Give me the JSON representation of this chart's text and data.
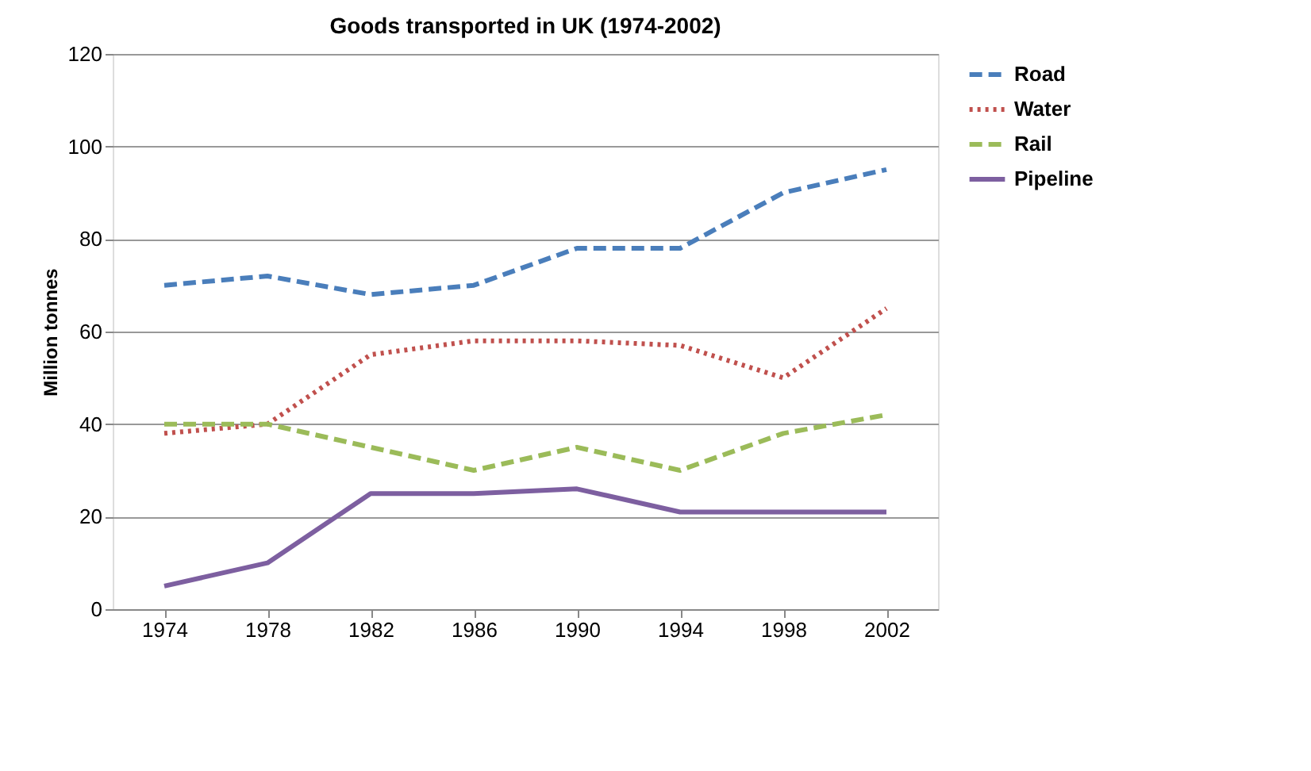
{
  "chart_data": {
    "type": "line",
    "title": "Goods transported in  UK (1974-2002)",
    "ylabel": "Million tonnes",
    "categories": [
      "1974",
      "1978",
      "1982",
      "1986",
      "1990",
      "1994",
      "1998",
      "2002"
    ],
    "series": [
      {
        "name": "Road",
        "color": "#4a7ebb",
        "line_style": "dashed",
        "values": [
          70,
          72,
          68,
          70,
          78,
          78,
          90,
          95
        ]
      },
      {
        "name": "Water",
        "color": "#c0504d",
        "line_style": "dotted",
        "values": [
          38,
          40,
          55,
          58,
          58,
          57,
          50,
          65
        ]
      },
      {
        "name": "Rail",
        "color": "#9bbb59",
        "line_style": "dashed",
        "values": [
          40,
          40,
          35,
          30,
          35,
          30,
          38,
          42
        ]
      },
      {
        "name": "Pipeline",
        "color": "#7d5fa0",
        "line_style": "solid",
        "values": [
          5,
          10,
          25,
          25,
          26,
          21,
          21,
          21
        ]
      }
    ],
    "ylim": [
      0,
      120
    ],
    "yticks": [
      0,
      20,
      40,
      60,
      80,
      100,
      120
    ],
    "grid": "y",
    "legend": "right",
    "marker": "none"
  }
}
